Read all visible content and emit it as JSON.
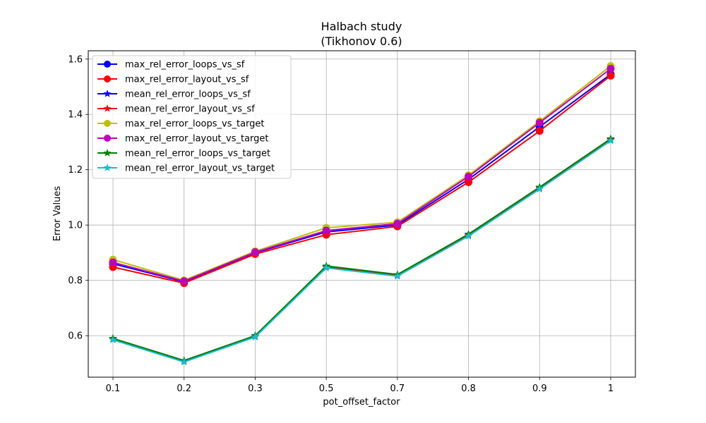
{
  "chart_data": {
    "type": "line",
    "title": "Halbach study",
    "subtitle": "(Tikhonov 0.6)",
    "xlabel": "pot_offset_factor",
    "ylabel": "Error Values",
    "categories": [
      "0.1",
      "0.2",
      "0.3",
      "0.5",
      "0.7",
      "0.8",
      "0.9",
      "1"
    ],
    "ylim": [
      0.45,
      1.63
    ],
    "yticks": [
      0.6,
      0.8,
      1.0,
      1.2,
      1.4,
      1.6
    ],
    "ytick_labels": [
      "0.6",
      "0.8",
      "1.0",
      "1.2",
      "1.4",
      "1.6"
    ],
    "grid": true,
    "legend_position": "top-left",
    "series": [
      {
        "name": "max_rel_error_loops_vs_sf",
        "color": "#0000ff",
        "marker": "circle",
        "values": [
          0.86,
          0.795,
          0.9,
          0.975,
          1.0,
          1.165,
          1.355,
          1.545
        ]
      },
      {
        "name": "max_rel_error_layout_vs_sf",
        "color": "#ff0000",
        "marker": "circle",
        "values": [
          0.848,
          0.79,
          0.895,
          0.965,
          0.995,
          1.155,
          1.34,
          1.54
        ]
      },
      {
        "name": "mean_rel_error_loops_vs_sf",
        "color": "#0000ff",
        "marker": "star",
        "values": [
          0.59,
          0.51,
          0.6,
          0.85,
          0.82,
          0.965,
          1.135,
          1.31
        ]
      },
      {
        "name": "mean_rel_error_layout_vs_sf",
        "color": "#ff0000",
        "marker": "star",
        "values": [
          0.588,
          0.508,
          0.598,
          0.848,
          0.818,
          0.963,
          1.133,
          1.308
        ]
      },
      {
        "name": "max_rel_error_loops_vs_target",
        "color": "#bfbf00",
        "marker": "circle",
        "values": [
          0.875,
          0.8,
          0.905,
          0.99,
          1.01,
          1.18,
          1.375,
          1.575
        ]
      },
      {
        "name": "max_rel_error_layout_vs_target",
        "color": "#bf00bf",
        "marker": "circle",
        "values": [
          0.865,
          0.797,
          0.902,
          0.98,
          1.005,
          1.175,
          1.37,
          1.565
        ]
      },
      {
        "name": "mean_rel_error_loops_vs_target",
        "color": "#008000",
        "marker": "star",
        "values": [
          0.59,
          0.51,
          0.6,
          0.852,
          0.821,
          0.967,
          1.137,
          1.312
        ]
      },
      {
        "name": "mean_rel_error_layout_vs_target",
        "color": "#17becf",
        "marker": "star",
        "values": [
          0.585,
          0.505,
          0.595,
          0.845,
          0.815,
          0.96,
          1.13,
          1.305
        ]
      }
    ]
  }
}
